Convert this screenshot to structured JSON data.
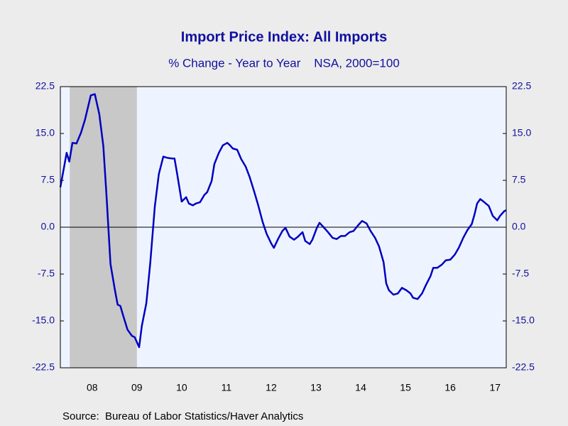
{
  "chart_data": {
    "type": "line",
    "title": "Import Price Index: All Imports",
    "subtitle": "% Change - Year to Year    NSA, 2000=100",
    "source": "Source:  Bureau of Labor Statistics/Haver Analytics",
    "x": [
      2007.79,
      2007.87,
      2007.93,
      2007.99,
      2008.06,
      2008.15,
      2008.25,
      2008.34,
      2008.47,
      2008.56,
      2008.66,
      2008.75,
      2008.82,
      2008.91,
      2009.01,
      2009.07,
      2009.13,
      2009.2,
      2009.29,
      2009.39,
      2009.45,
      2009.55,
      2009.61,
      2009.71,
      2009.8,
      2009.9,
      2009.99,
      2010.09,
      2010.18,
      2010.28,
      2010.34,
      2010.4,
      2010.5,
      2010.6,
      2010.66,
      2010.75,
      2010.82,
      2010.91,
      2011.01,
      2011.07,
      2011.17,
      2011.23,
      2011.33,
      2011.42,
      2011.52,
      2011.58,
      2011.64,
      2011.74,
      2011.83,
      2011.93,
      2012.02,
      2012.12,
      2012.21,
      2012.31,
      2012.4,
      2012.5,
      2012.56,
      2012.66,
      2012.75,
      2012.82,
      2012.91,
      2013.01,
      2013.1,
      2013.2,
      2013.26,
      2013.36,
      2013.42,
      2013.52,
      2013.58,
      2013.67,
      2013.77,
      2013.87,
      2013.96,
      2014.06,
      2014.15,
      2014.25,
      2014.34,
      2014.44,
      2014.53,
      2014.63,
      2014.72,
      2014.82,
      2014.91,
      2015.01,
      2015.07,
      2015.13,
      2015.23,
      2015.33,
      2015.42,
      2015.52,
      2015.61,
      2015.67,
      2015.77,
      2015.87,
      2015.96,
      2016.06,
      2016.12,
      2016.21,
      2016.31,
      2016.4,
      2016.5,
      2016.6,
      2016.69,
      2016.79,
      2016.88,
      2016.98,
      2017.04,
      2017.1,
      2017.17,
      2017.26,
      2017.36,
      2017.45,
      2017.55,
      2017.61,
      2017.71,
      2017.75
    ],
    "series": [
      {
        "color": "#0000c0",
        "values": [
          6.4,
          9.5,
          11.9,
          10.5,
          13.5,
          13.4,
          15.1,
          17.2,
          21.1,
          21.3,
          18.1,
          13.0,
          5.2,
          -5.9,
          -10.1,
          -12.4,
          -12.6,
          -14.3,
          -16.4,
          -17.4,
          -17.6,
          -19.2,
          -15.8,
          -12.2,
          -5.6,
          3.3,
          8.5,
          11.3,
          11.1,
          11.0,
          11.0,
          8.5,
          4.1,
          4.8,
          3.8,
          3.5,
          3.8,
          4.0,
          5.2,
          5.6,
          7.4,
          10.1,
          11.9,
          13.1,
          13.5,
          13.1,
          12.6,
          12.4,
          10.9,
          9.7,
          8.0,
          5.7,
          3.5,
          0.8,
          -1.1,
          -2.6,
          -3.3,
          -1.8,
          -0.6,
          -0.1,
          -1.5,
          -2.0,
          -1.5,
          -0.8,
          -2.2,
          -2.7,
          -2.0,
          -0.1,
          0.7,
          0,
          -0.8,
          -1.7,
          -1.9,
          -1.4,
          -1.4,
          -0.8,
          -0.6,
          0.3,
          1.0,
          0.6,
          -0.6,
          -1.7,
          -3.1,
          -5.6,
          -9.0,
          -10.1,
          -10.8,
          -10.6,
          -9.7,
          -10.1,
          -10.6,
          -11.3,
          -11.5,
          -10.6,
          -9.2,
          -7.8,
          -6.5,
          -6.5,
          -6.0,
          -5.3,
          -5.2,
          -4.4,
          -3.3,
          -1.7,
          -0.5,
          0.5,
          2.0,
          3.8,
          4.5,
          4.0,
          3.4,
          1.8,
          1.1,
          1.8,
          2.6,
          2.7
        ]
      }
    ],
    "xlim": [
      2007.79,
      2017.75
    ],
    "xticks": [
      {
        "value": 2008.5,
        "label": "08"
      },
      {
        "value": 2009.5,
        "label": "09"
      },
      {
        "value": 2010.5,
        "label": "10"
      },
      {
        "value": 2011.5,
        "label": "11"
      },
      {
        "value": 2012.5,
        "label": "12"
      },
      {
        "value": 2013.5,
        "label": "13"
      },
      {
        "value": 2014.5,
        "label": "14"
      },
      {
        "value": 2015.5,
        "label": "15"
      },
      {
        "value": 2016.5,
        "label": "16"
      },
      {
        "value": 2017.5,
        "label": "17"
      }
    ],
    "ylim": [
      -22.5,
      22.5
    ],
    "yticks": [
      22.5,
      {
        "value": 15,
        "label": "15.0"
      },
      7.5,
      {
        "value": 0,
        "label": "0.0"
      },
      -7.5,
      {
        "value": -15,
        "label": "-15.0"
      },
      -22.5
    ],
    "shading": [
      [
        2008.0,
        2009.5
      ]
    ],
    "shading_color": "#c8c8c8",
    "zero_line": true
  }
}
